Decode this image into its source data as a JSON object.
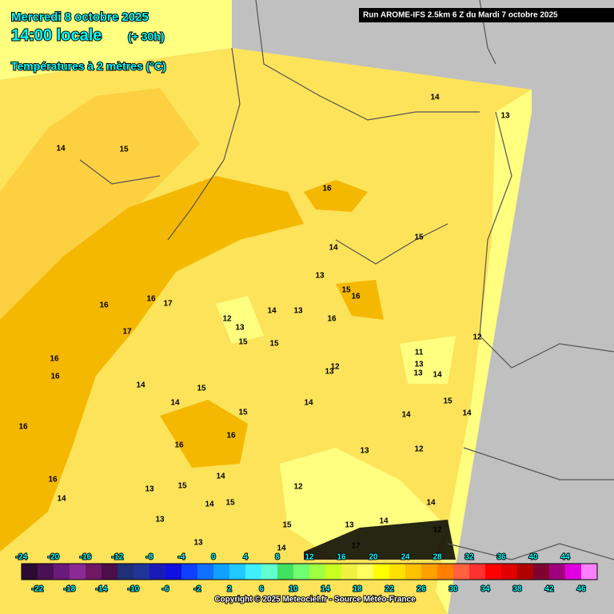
{
  "header": {
    "date": "Mercredi 8 octobre 2025",
    "time": "14:00 locale",
    "lead": "(+ 30h)",
    "variable": "Températures à 2 mètres (°C)",
    "run": "Run AROME-IFS 2.5km 6 Z du Mardi 7 octobre 2025"
  },
  "contour_labels": [
    14,
    13,
    14,
    15,
    16,
    15,
    14,
    13,
    15,
    16,
    16,
    16,
    17,
    14,
    13,
    16,
    12,
    13,
    17,
    15,
    15,
    12,
    11,
    13,
    13,
    14,
    16,
    16,
    12,
    13,
    14,
    15,
    14,
    14,
    15,
    14,
    14,
    16,
    15,
    16,
    16,
    13,
    12,
    16,
    14,
    15,
    13,
    14,
    12,
    14,
    15,
    14,
    13,
    15,
    13,
    14,
    12,
    13,
    14,
    17
  ],
  "legend": {
    "colors": [
      "#2d0a33",
      "#4a0f55",
      "#6a1a7a",
      "#8a2a95",
      "#6e1866",
      "#4d0c4a",
      "#1f2f78",
      "#22349a",
      "#1a1ab8",
      "#1010e0",
      "#1040ff",
      "#1070ff",
      "#10a0ff",
      "#20c8ff",
      "#40f0ff",
      "#60ffd0",
      "#40e060",
      "#70ff70",
      "#a0ff40",
      "#c8ff20",
      "#f0f040",
      "#ffff60",
      "#ffff00",
      "#ffe000",
      "#ffc000",
      "#ffa000",
      "#ff8000",
      "#ff6040",
      "#ff3030",
      "#ff0000",
      "#e00000",
      "#b00000",
      "#800030",
      "#a00080",
      "#e000e0",
      "#ff80ff"
    ],
    "labels_top": [
      -24,
      -20,
      -16,
      -12,
      -8,
      -4,
      0,
      4,
      8,
      12,
      16,
      20,
      24,
      28,
      32,
      36,
      40,
      44
    ],
    "labels_bottom": [
      -22,
      -18,
      -14,
      -10,
      -6,
      -2,
      2,
      6,
      10,
      14,
      18,
      22,
      26,
      30,
      34,
      38,
      42,
      46
    ]
  },
  "footer": "Copyright © 2025 Meteociel.fr - Source Météo-France"
}
